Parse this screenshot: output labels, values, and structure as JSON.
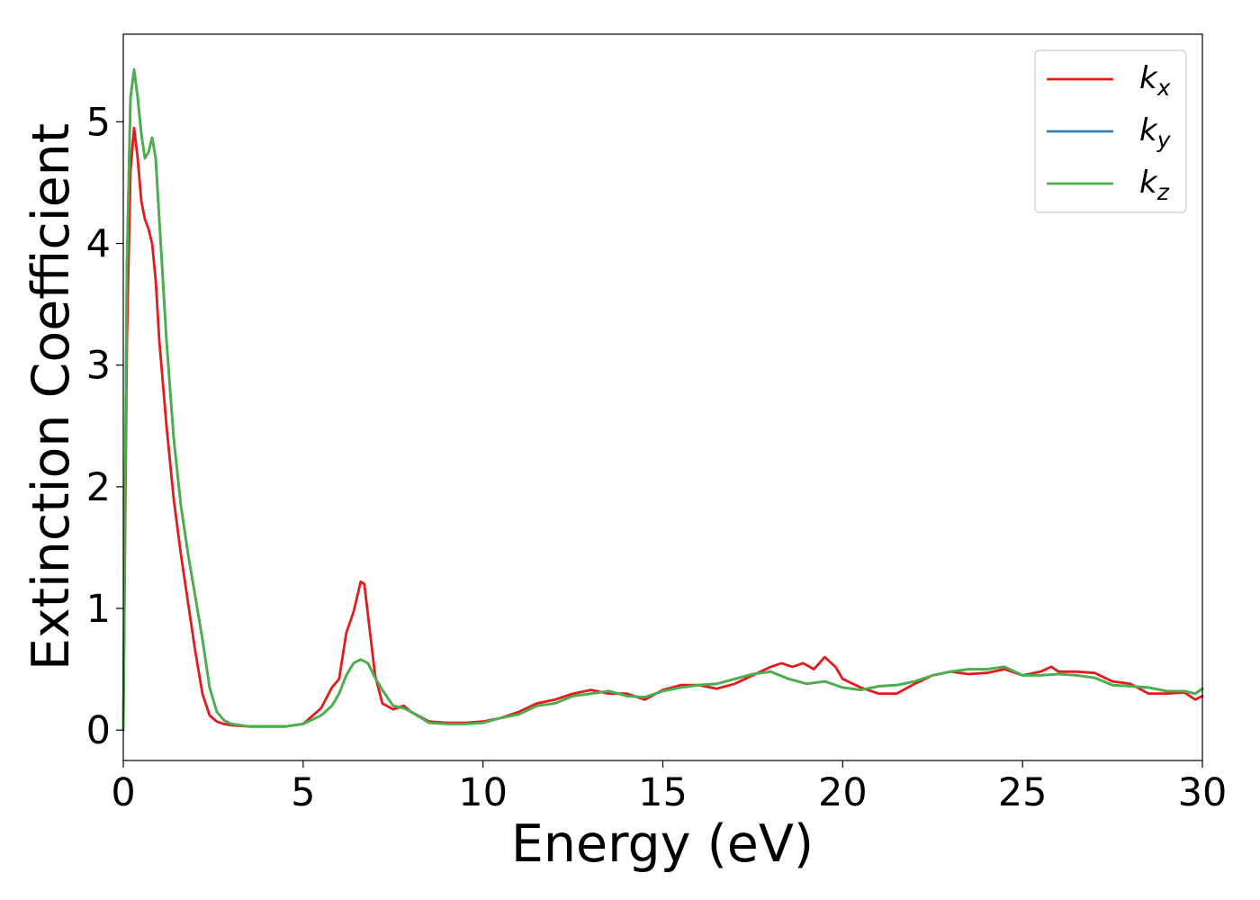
{
  "chart_data": {
    "type": "line",
    "xlabel": "Energy (eV)",
    "ylabel": "Extinction Coefficient",
    "xlim": [
      0,
      30
    ],
    "ylim": [
      -0.25,
      5.72
    ],
    "xticks": [
      0,
      5,
      10,
      15,
      20,
      25,
      30
    ],
    "yticks": [
      0,
      1,
      2,
      3,
      4,
      5
    ],
    "grid": false,
    "legend_position": "top-right",
    "series": [
      {
        "name": "k_x",
        "base": "k",
        "sub": "x",
        "color": "#e41a1c",
        "x": [
          0,
          0.1,
          0.2,
          0.3,
          0.4,
          0.5,
          0.6,
          0.7,
          0.8,
          0.9,
          1.0,
          1.2,
          1.4,
          1.6,
          1.8,
          2.0,
          2.2,
          2.4,
          2.6,
          2.8,
          3.0,
          3.5,
          4.0,
          4.5,
          5.0,
          5.5,
          5.8,
          6.0,
          6.2,
          6.4,
          6.6,
          6.7,
          6.8,
          7.0,
          7.2,
          7.5,
          7.8,
          8.0,
          8.5,
          9.0,
          9.5,
          10.0,
          10.5,
          11.0,
          11.5,
          12.0,
          12.5,
          13.0,
          13.5,
          14.0,
          14.5,
          15.0,
          15.5,
          16.0,
          16.5,
          17.0,
          17.5,
          18.0,
          18.3,
          18.6,
          18.9,
          19.2,
          19.5,
          19.8,
          20.0,
          20.5,
          21.0,
          21.5,
          22.0,
          22.5,
          23.0,
          23.5,
          24.0,
          24.5,
          25.0,
          25.5,
          25.8,
          26.0,
          26.5,
          27.0,
          27.5,
          28.0,
          28.5,
          29.0,
          29.5,
          29.8,
          30.0
        ],
        "y": [
          0.0,
          3.2,
          4.6,
          4.95,
          4.7,
          4.35,
          4.2,
          4.12,
          4.0,
          3.7,
          3.2,
          2.5,
          1.9,
          1.45,
          1.05,
          0.65,
          0.3,
          0.12,
          0.07,
          0.05,
          0.04,
          0.03,
          0.03,
          0.03,
          0.05,
          0.18,
          0.35,
          0.42,
          0.8,
          0.97,
          1.22,
          1.2,
          0.95,
          0.45,
          0.22,
          0.17,
          0.2,
          0.15,
          0.07,
          0.06,
          0.06,
          0.07,
          0.1,
          0.15,
          0.22,
          0.25,
          0.3,
          0.33,
          0.3,
          0.3,
          0.25,
          0.33,
          0.37,
          0.37,
          0.34,
          0.38,
          0.45,
          0.52,
          0.55,
          0.52,
          0.55,
          0.5,
          0.6,
          0.52,
          0.42,
          0.35,
          0.3,
          0.3,
          0.38,
          0.45,
          0.48,
          0.46,
          0.47,
          0.5,
          0.45,
          0.48,
          0.52,
          0.48,
          0.48,
          0.47,
          0.4,
          0.38,
          0.3,
          0.3,
          0.31,
          0.25,
          0.28
        ]
      },
      {
        "name": "k_y",
        "base": "k",
        "sub": "y",
        "color": "#377eb8",
        "x": [
          0,
          0.1,
          0.2,
          0.3,
          0.4,
          0.5,
          0.6,
          0.7,
          0.8,
          0.9,
          1.0,
          1.2,
          1.4,
          1.6,
          1.8,
          2.0,
          2.2,
          2.4,
          2.6,
          2.8,
          3.0,
          3.5,
          4.0,
          4.5,
          5.0,
          5.5,
          5.8,
          6.0,
          6.2,
          6.4,
          6.6,
          6.8,
          7.0,
          7.2,
          7.5,
          7.8,
          8.0,
          8.5,
          9.0,
          9.5,
          10.0,
          10.5,
          11.0,
          11.5,
          12.0,
          12.5,
          13.0,
          13.5,
          14.0,
          14.5,
          15.0,
          15.5,
          16.0,
          16.5,
          17.0,
          17.5,
          18.0,
          18.5,
          19.0,
          19.5,
          20.0,
          20.5,
          21.0,
          21.5,
          22.0,
          22.5,
          23.0,
          23.5,
          24.0,
          24.5,
          25.0,
          25.5,
          26.0,
          26.5,
          27.0,
          27.5,
          28.0,
          28.5,
          29.0,
          29.5,
          29.8,
          30.0
        ],
        "y": [
          0.0,
          3.8,
          5.2,
          5.43,
          5.2,
          4.9,
          4.7,
          4.75,
          4.87,
          4.7,
          4.2,
          3.2,
          2.4,
          1.85,
          1.45,
          1.1,
          0.75,
          0.35,
          0.15,
          0.08,
          0.05,
          0.03,
          0.03,
          0.03,
          0.05,
          0.12,
          0.2,
          0.3,
          0.45,
          0.55,
          0.58,
          0.55,
          0.43,
          0.33,
          0.2,
          0.18,
          0.15,
          0.06,
          0.05,
          0.05,
          0.06,
          0.1,
          0.13,
          0.2,
          0.22,
          0.28,
          0.3,
          0.32,
          0.28,
          0.27,
          0.32,
          0.35,
          0.37,
          0.38,
          0.42,
          0.46,
          0.48,
          0.42,
          0.38,
          0.4,
          0.35,
          0.33,
          0.36,
          0.37,
          0.4,
          0.45,
          0.48,
          0.5,
          0.5,
          0.52,
          0.45,
          0.45,
          0.46,
          0.45,
          0.43,
          0.37,
          0.36,
          0.35,
          0.32,
          0.32,
          0.3,
          0.34
        ]
      },
      {
        "name": "k_z",
        "base": "k",
        "sub": "z",
        "color": "#4daf4a",
        "x": [
          0,
          0.1,
          0.2,
          0.3,
          0.4,
          0.5,
          0.6,
          0.7,
          0.8,
          0.9,
          1.0,
          1.2,
          1.4,
          1.6,
          1.8,
          2.0,
          2.2,
          2.4,
          2.6,
          2.8,
          3.0,
          3.5,
          4.0,
          4.5,
          5.0,
          5.5,
          5.8,
          6.0,
          6.2,
          6.4,
          6.6,
          6.8,
          7.0,
          7.2,
          7.5,
          7.8,
          8.0,
          8.5,
          9.0,
          9.5,
          10.0,
          10.5,
          11.0,
          11.5,
          12.0,
          12.5,
          13.0,
          13.5,
          14.0,
          14.5,
          15.0,
          15.5,
          16.0,
          16.5,
          17.0,
          17.5,
          18.0,
          18.5,
          19.0,
          19.5,
          20.0,
          20.5,
          21.0,
          21.5,
          22.0,
          22.5,
          23.0,
          23.5,
          24.0,
          24.5,
          25.0,
          25.5,
          26.0,
          26.5,
          27.0,
          27.5,
          28.0,
          28.5,
          29.0,
          29.5,
          29.8,
          30.0
        ],
        "y": [
          0.0,
          3.8,
          5.2,
          5.43,
          5.2,
          4.9,
          4.7,
          4.75,
          4.87,
          4.7,
          4.2,
          3.2,
          2.4,
          1.85,
          1.45,
          1.1,
          0.75,
          0.35,
          0.15,
          0.08,
          0.05,
          0.03,
          0.03,
          0.03,
          0.05,
          0.12,
          0.2,
          0.3,
          0.45,
          0.55,
          0.58,
          0.55,
          0.43,
          0.33,
          0.2,
          0.18,
          0.15,
          0.06,
          0.05,
          0.05,
          0.06,
          0.1,
          0.13,
          0.2,
          0.22,
          0.28,
          0.3,
          0.32,
          0.28,
          0.27,
          0.32,
          0.35,
          0.37,
          0.38,
          0.42,
          0.46,
          0.48,
          0.42,
          0.38,
          0.4,
          0.35,
          0.33,
          0.36,
          0.37,
          0.4,
          0.45,
          0.48,
          0.5,
          0.5,
          0.52,
          0.45,
          0.45,
          0.46,
          0.45,
          0.43,
          0.37,
          0.36,
          0.35,
          0.32,
          0.32,
          0.3,
          0.34
        ]
      }
    ]
  }
}
